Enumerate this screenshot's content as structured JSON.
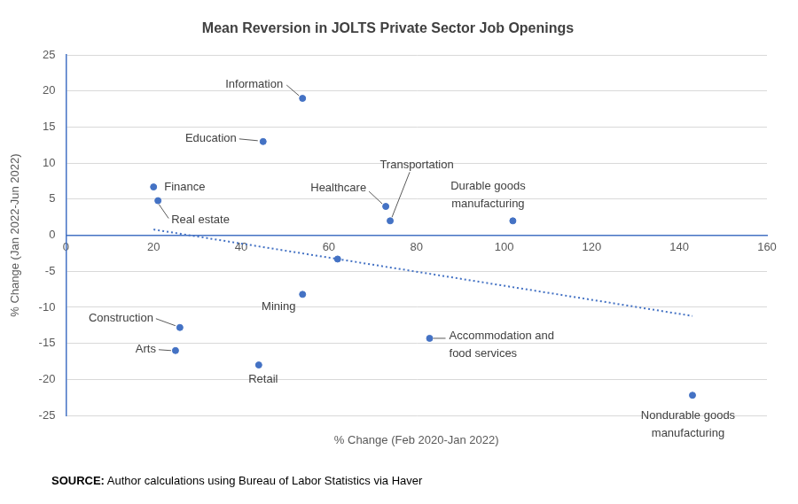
{
  "chart_data": {
    "type": "scatter",
    "title": "Mean Reversion in JOLTS Private Sector Job Openings",
    "x_label": "% Change (Feb 2020-Jan 2022)",
    "y_label": "% Change (Jan 2022-Jun 2022)",
    "source_label": "SOURCE:",
    "source": "Author calculations using Bureau of Labor Statistics via Haver",
    "xlim": [
      0,
      160
    ],
    "xticks": [
      0,
      20,
      40,
      60,
      80,
      100,
      120,
      140,
      160
    ],
    "ylim": [
      -25,
      25
    ],
    "yticks": [
      -25,
      -20,
      -15,
      -10,
      -5,
      0,
      5,
      10,
      15,
      20,
      25
    ],
    "grid": "y",
    "legend": false,
    "series": [
      {
        "type": "scatter",
        "color": "#4472c4",
        "marker": "circle",
        "x": [
          54,
          45,
          20,
          21,
          73,
          74,
          102,
          62,
          54,
          26,
          25,
          44,
          83,
          143
        ],
        "values": [
          19,
          13,
          6.7,
          4.8,
          4,
          2,
          2,
          -3.3,
          -8.2,
          -12.8,
          -16,
          -18,
          -14.3,
          -22.2
        ],
        "labels": [
          "Information",
          "Education",
          "Finance",
          "Real estate",
          "Healthcare",
          "Transportation",
          "Durable goods manufacturing",
          null,
          "Mining",
          "Construction",
          "Arts",
          "Retail",
          "Accommodation and food services",
          "Nondurable goods manufacturing"
        ]
      },
      {
        "type": "line",
        "line_style": "dotted",
        "color": "#4472c4",
        "x": [
          20,
          143
        ],
        "values": [
          0.8,
          -11.2
        ]
      }
    ]
  }
}
